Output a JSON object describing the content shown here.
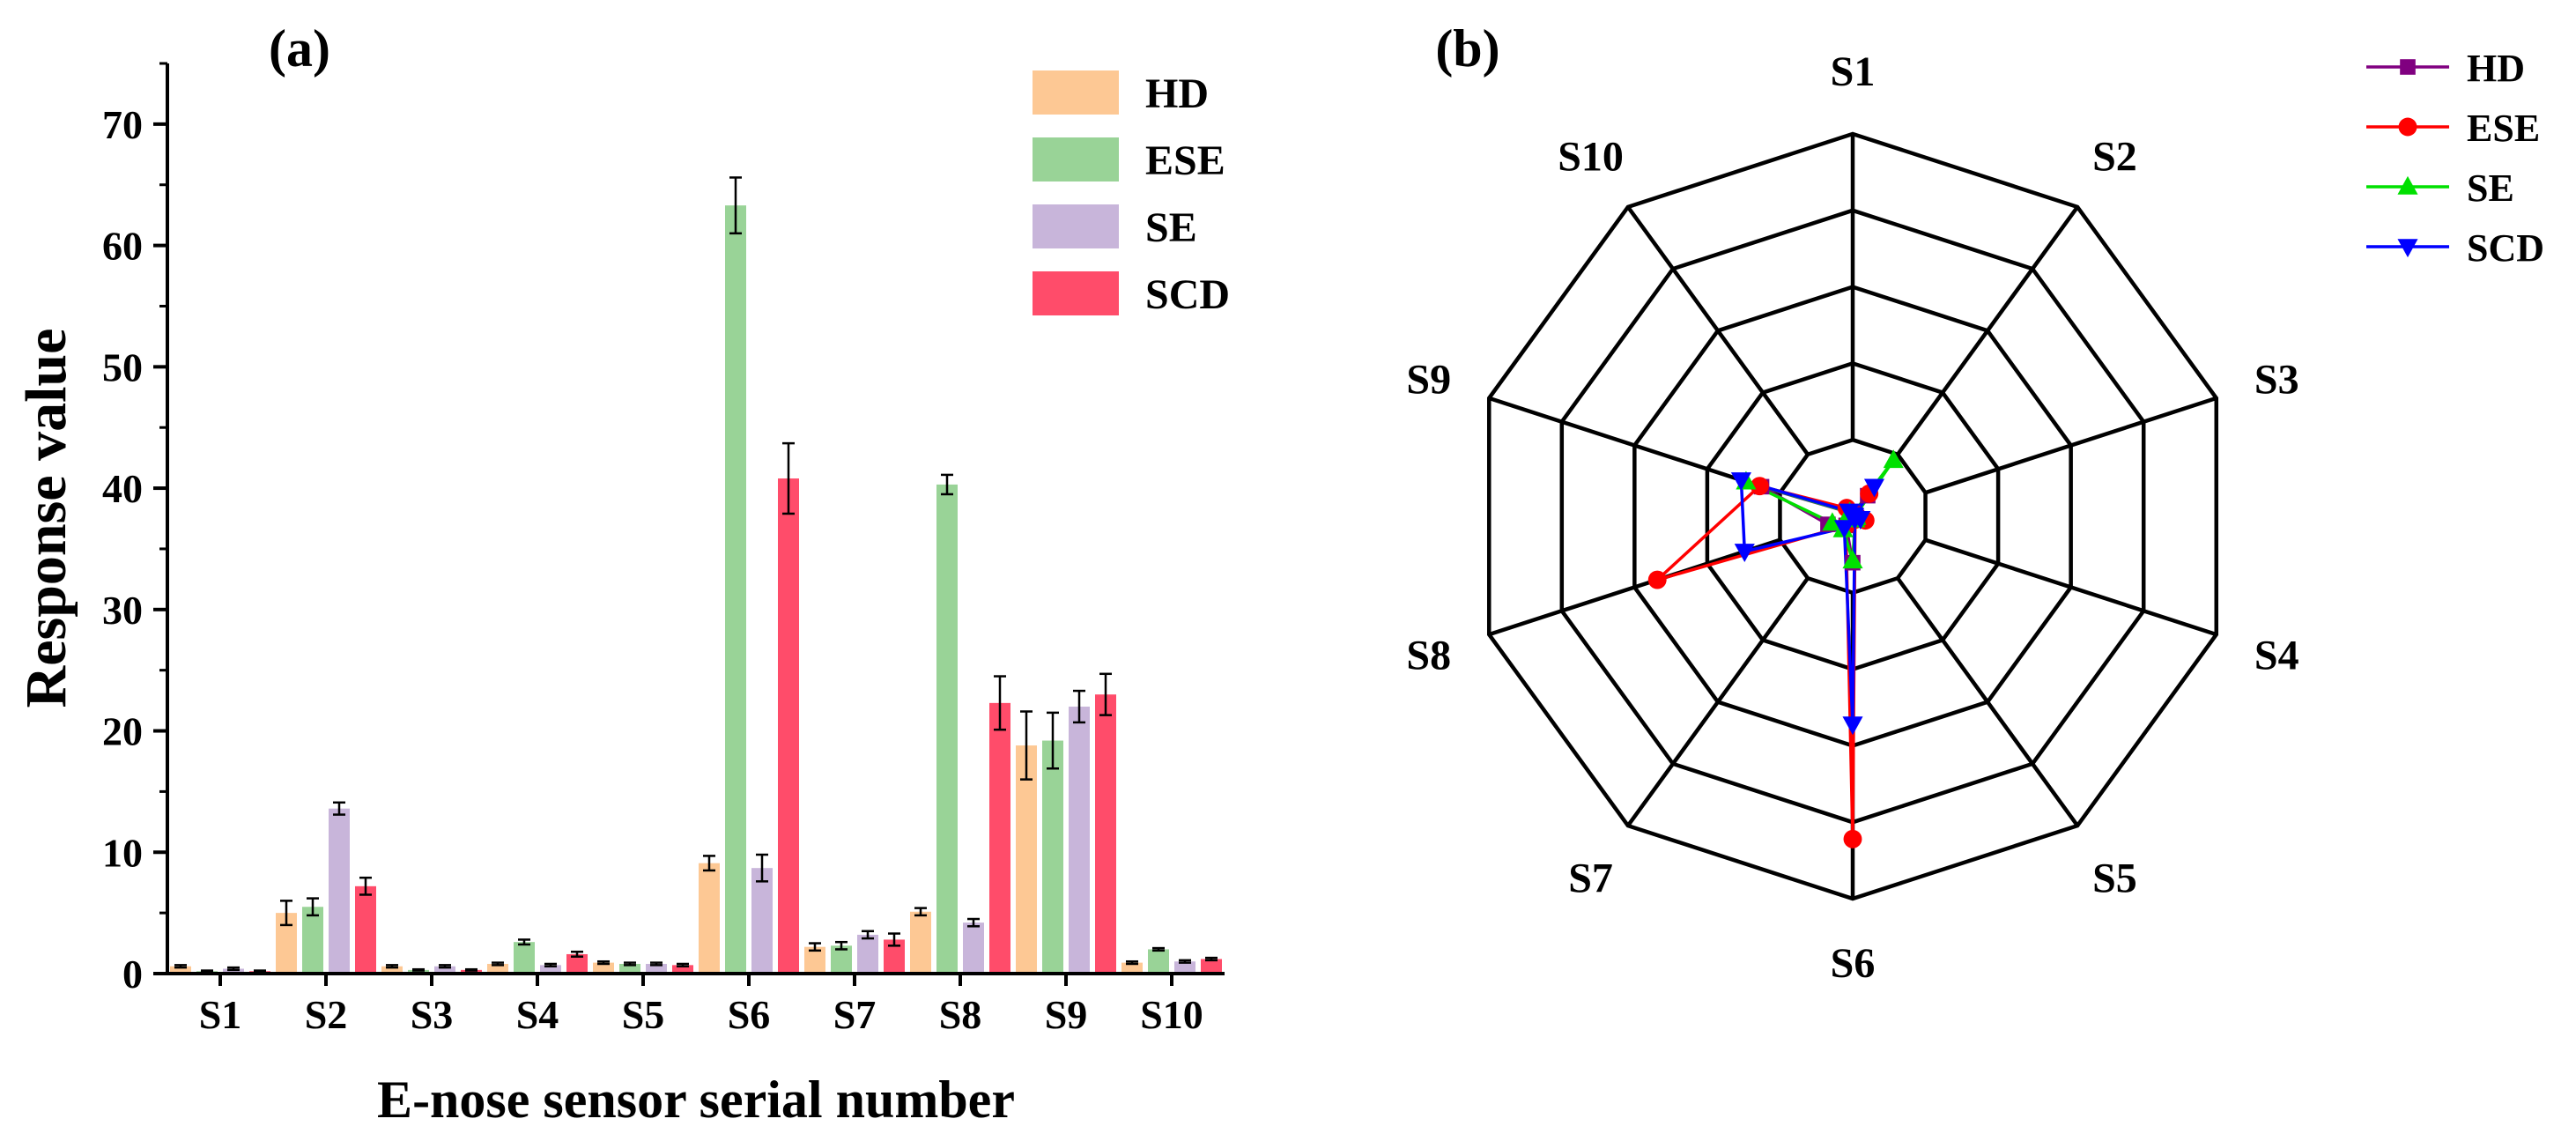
{
  "figure": {
    "panel_a_label": "(a)",
    "panel_b_label": "(b)"
  },
  "colors": {
    "HD": "#FDC894",
    "ESE": "#99D397",
    "SE": "#C8B5DA",
    "SCD": "#FF4C6A",
    "radar_HD": "#800080",
    "radar_ESE": "#FF0000",
    "radar_SE": "#00E000",
    "radar_SCD": "#0000FF",
    "axis": "#000000",
    "error_bar": "#000000"
  },
  "chart_data": [
    {
      "type": "bar",
      "title": "(a)",
      "xlabel": "E-nose sensor serial number",
      "ylabel": "Response value",
      "categories": [
        "S1",
        "S2",
        "S3",
        "S4",
        "S5",
        "S6",
        "S7",
        "S8",
        "S9",
        "S10"
      ],
      "ylim": [
        0,
        75
      ],
      "yticks": [
        0,
        10,
        20,
        30,
        40,
        50,
        60,
        70
      ],
      "legend_position": "top-right",
      "series": [
        {
          "name": "HD",
          "values": [
            0.6,
            5.0,
            0.6,
            0.8,
            0.9,
            9.1,
            2.2,
            5.1,
            18.8,
            0.9
          ],
          "errors": [
            0.1,
            1.0,
            0.1,
            0.1,
            0.1,
            0.6,
            0.3,
            0.3,
            2.8,
            0.1
          ]
        },
        {
          "name": "ESE",
          "values": [
            0.2,
            5.5,
            0.3,
            2.6,
            0.8,
            63.3,
            2.3,
            40.3,
            19.2,
            2.0
          ],
          "errors": [
            0.05,
            0.7,
            0.05,
            0.2,
            0.1,
            2.3,
            0.3,
            0.8,
            2.3,
            0.1
          ]
        },
        {
          "name": "SE",
          "values": [
            0.4,
            13.6,
            0.6,
            0.7,
            0.8,
            8.7,
            3.2,
            4.2,
            22.0,
            1.0
          ],
          "errors": [
            0.1,
            0.5,
            0.1,
            0.1,
            0.1,
            1.1,
            0.3,
            0.3,
            1.3,
            0.1
          ]
        },
        {
          "name": "SCD",
          "values": [
            0.2,
            7.2,
            0.3,
            1.6,
            0.7,
            40.8,
            2.8,
            22.3,
            23.0,
            1.2
          ],
          "errors": [
            0.05,
            0.7,
            0.05,
            0.2,
            0.1,
            2.9,
            0.5,
            2.2,
            1.7,
            0.1
          ]
        }
      ]
    },
    {
      "type": "radar",
      "title": "(b)",
      "axes": [
        "S1",
        "S2",
        "S3",
        "S4",
        "S5",
        "S6",
        "S7",
        "S8",
        "S9",
        "S10"
      ],
      "rlim": [
        0,
        75
      ],
      "rings": 5,
      "legend_position": "top-right",
      "series": [
        {
          "name": "HD",
          "marker": "square",
          "values": [
            0.6,
            5.0,
            0.6,
            0.8,
            0.9,
            9.1,
            2.2,
            5.1,
            18.8,
            0.9
          ]
        },
        {
          "name": "ESE",
          "marker": "circle",
          "values": [
            0.2,
            5.5,
            0.3,
            2.6,
            0.8,
            63.3,
            2.3,
            40.3,
            19.2,
            2.0
          ]
        },
        {
          "name": "SE",
          "marker": "triangle-up",
          "values": [
            0.4,
            13.6,
            0.6,
            0.7,
            0.8,
            8.7,
            3.2,
            4.2,
            22.0,
            1.0
          ]
        },
        {
          "name": "SCD",
          "marker": "triangle-down",
          "values": [
            0.2,
            7.2,
            0.3,
            1.6,
            0.7,
            40.8,
            2.8,
            22.3,
            23.0,
            1.2
          ]
        }
      ]
    }
  ]
}
